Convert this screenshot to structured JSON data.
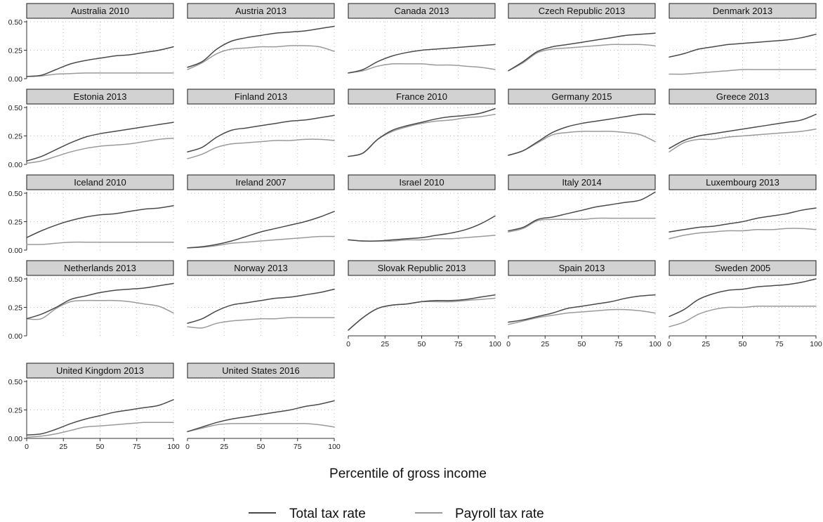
{
  "chart_data": {
    "type": "line",
    "xlabel": "Percentile of gross income",
    "xlim": [
      0,
      100
    ],
    "ylim": [
      0,
      0.5
    ],
    "x_ticks": [
      "0",
      "25",
      "50",
      "75",
      "100"
    ],
    "y_ticks": [
      "0.00",
      "0.25",
      "0.50"
    ],
    "x": [
      0,
      10,
      20,
      30,
      40,
      50,
      60,
      70,
      80,
      90,
      100
    ],
    "grid": "dotted",
    "legend_position": "bottom",
    "legend": [
      {
        "name": "Total tax rate",
        "color": "#4a4a4a"
      },
      {
        "name": "Payroll tax rate",
        "color": "#9a9a9a"
      }
    ],
    "panels": [
      {
        "title": "Australia 2010",
        "total": [
          0.02,
          0.03,
          0.08,
          0.13,
          0.16,
          0.18,
          0.2,
          0.21,
          0.23,
          0.25,
          0.28
        ],
        "payroll": [
          0.02,
          0.025,
          0.04,
          0.045,
          0.05,
          0.05,
          0.05,
          0.05,
          0.05,
          0.05,
          0.05
        ]
      },
      {
        "title": "Austria 2013",
        "total": [
          0.1,
          0.15,
          0.26,
          0.33,
          0.36,
          0.38,
          0.4,
          0.41,
          0.42,
          0.44,
          0.46
        ],
        "payroll": [
          0.08,
          0.14,
          0.22,
          0.26,
          0.27,
          0.28,
          0.28,
          0.29,
          0.29,
          0.28,
          0.24
        ]
      },
      {
        "title": "Canada 2013",
        "total": [
          0.05,
          0.08,
          0.15,
          0.2,
          0.23,
          0.25,
          0.26,
          0.27,
          0.28,
          0.29,
          0.3
        ],
        "payroll": [
          0.05,
          0.07,
          0.11,
          0.13,
          0.13,
          0.13,
          0.12,
          0.12,
          0.11,
          0.1,
          0.08
        ]
      },
      {
        "title": "Czech Republic 2013",
        "total": [
          0.07,
          0.15,
          0.24,
          0.28,
          0.3,
          0.32,
          0.34,
          0.36,
          0.38,
          0.39,
          0.4
        ],
        "payroll": [
          0.07,
          0.14,
          0.23,
          0.26,
          0.27,
          0.28,
          0.29,
          0.3,
          0.3,
          0.3,
          0.29
        ]
      },
      {
        "title": "Denmark 2013",
        "total": [
          0.19,
          0.22,
          0.26,
          0.28,
          0.3,
          0.31,
          0.32,
          0.33,
          0.34,
          0.36,
          0.39
        ],
        "payroll": [
          0.04,
          0.04,
          0.05,
          0.06,
          0.07,
          0.08,
          0.08,
          0.08,
          0.08,
          0.08,
          0.08
        ]
      },
      {
        "title": "Estonia 2013",
        "total": [
          0.03,
          0.07,
          0.13,
          0.19,
          0.24,
          0.27,
          0.29,
          0.31,
          0.33,
          0.35,
          0.37
        ],
        "payroll": [
          0.01,
          0.03,
          0.07,
          0.11,
          0.14,
          0.16,
          0.17,
          0.18,
          0.2,
          0.22,
          0.23
        ]
      },
      {
        "title": "Finland 2013",
        "total": [
          0.11,
          0.15,
          0.24,
          0.3,
          0.32,
          0.34,
          0.36,
          0.38,
          0.39,
          0.41,
          0.43
        ],
        "payroll": [
          0.05,
          0.09,
          0.15,
          0.18,
          0.19,
          0.2,
          0.21,
          0.21,
          0.22,
          0.22,
          0.21
        ]
      },
      {
        "title": "France 2010",
        "total": [
          0.07,
          0.1,
          0.22,
          0.3,
          0.34,
          0.37,
          0.4,
          0.42,
          0.43,
          0.45,
          0.49
        ],
        "payroll": [
          0.07,
          0.1,
          0.22,
          0.29,
          0.33,
          0.36,
          0.38,
          0.39,
          0.41,
          0.42,
          0.44
        ]
      },
      {
        "title": "Germany 2015",
        "total": [
          0.08,
          0.12,
          0.2,
          0.28,
          0.33,
          0.36,
          0.38,
          0.4,
          0.42,
          0.44,
          0.44
        ],
        "payroll": [
          0.08,
          0.12,
          0.19,
          0.26,
          0.28,
          0.29,
          0.29,
          0.29,
          0.28,
          0.26,
          0.2
        ]
      },
      {
        "title": "Greece 2013",
        "total": [
          0.14,
          0.21,
          0.25,
          0.27,
          0.29,
          0.31,
          0.33,
          0.35,
          0.37,
          0.39,
          0.44
        ],
        "payroll": [
          0.11,
          0.19,
          0.22,
          0.22,
          0.24,
          0.25,
          0.26,
          0.27,
          0.28,
          0.29,
          0.31
        ]
      },
      {
        "title": "Iceland 2010",
        "total": [
          0.11,
          0.17,
          0.22,
          0.26,
          0.29,
          0.31,
          0.32,
          0.34,
          0.36,
          0.37,
          0.39
        ],
        "payroll": [
          0.05,
          0.05,
          0.06,
          0.07,
          0.07,
          0.07,
          0.07,
          0.07,
          0.07,
          0.07,
          0.07
        ]
      },
      {
        "title": "Ireland 2007",
        "total": [
          0.02,
          0.03,
          0.05,
          0.08,
          0.12,
          0.16,
          0.19,
          0.22,
          0.25,
          0.29,
          0.34
        ],
        "payroll": [
          0.02,
          0.025,
          0.04,
          0.06,
          0.07,
          0.08,
          0.09,
          0.1,
          0.11,
          0.12,
          0.12
        ]
      },
      {
        "title": "Israel 2010",
        "total": [
          0.09,
          0.08,
          0.08,
          0.09,
          0.1,
          0.11,
          0.13,
          0.15,
          0.18,
          0.23,
          0.3
        ],
        "payroll": [
          0.09,
          0.08,
          0.08,
          0.08,
          0.09,
          0.09,
          0.1,
          0.1,
          0.11,
          0.12,
          0.13
        ]
      },
      {
        "title": "Italy 2014",
        "total": [
          0.17,
          0.2,
          0.27,
          0.29,
          0.32,
          0.35,
          0.38,
          0.4,
          0.42,
          0.44,
          0.51
        ],
        "payroll": [
          0.16,
          0.19,
          0.26,
          0.27,
          0.27,
          0.27,
          0.28,
          0.28,
          0.28,
          0.28,
          0.28
        ]
      },
      {
        "title": "Luxembourg 2013",
        "total": [
          0.16,
          0.18,
          0.2,
          0.21,
          0.23,
          0.25,
          0.28,
          0.3,
          0.32,
          0.35,
          0.37
        ],
        "payroll": [
          0.1,
          0.13,
          0.15,
          0.16,
          0.17,
          0.17,
          0.18,
          0.18,
          0.19,
          0.19,
          0.18
        ]
      },
      {
        "title": "Netherlands 2013",
        "total": [
          0.15,
          0.19,
          0.25,
          0.32,
          0.35,
          0.38,
          0.4,
          0.41,
          0.42,
          0.44,
          0.46
        ],
        "payroll": [
          0.15,
          0.15,
          0.24,
          0.3,
          0.31,
          0.31,
          0.31,
          0.3,
          0.28,
          0.26,
          0.2
        ]
      },
      {
        "title": "Norway 2013",
        "total": [
          0.11,
          0.15,
          0.22,
          0.27,
          0.29,
          0.31,
          0.33,
          0.34,
          0.36,
          0.38,
          0.41
        ],
        "payroll": [
          0.08,
          0.07,
          0.11,
          0.13,
          0.14,
          0.15,
          0.15,
          0.16,
          0.16,
          0.16,
          0.16
        ]
      },
      {
        "title": "Slovak Republic 2013",
        "total": [
          0.05,
          0.16,
          0.24,
          0.27,
          0.28,
          0.3,
          0.31,
          0.31,
          0.32,
          0.34,
          0.36
        ],
        "payroll": [
          0.05,
          0.16,
          0.24,
          0.27,
          0.28,
          0.3,
          0.3,
          0.3,
          0.31,
          0.32,
          0.33
        ]
      },
      {
        "title": "Spain 2013",
        "total": [
          0.12,
          0.14,
          0.17,
          0.2,
          0.24,
          0.26,
          0.28,
          0.3,
          0.33,
          0.35,
          0.36
        ],
        "payroll": [
          0.1,
          0.13,
          0.16,
          0.18,
          0.2,
          0.21,
          0.22,
          0.23,
          0.23,
          0.22,
          0.2
        ]
      },
      {
        "title": "Sweden 2005",
        "total": [
          0.17,
          0.23,
          0.32,
          0.37,
          0.4,
          0.41,
          0.43,
          0.44,
          0.45,
          0.47,
          0.5
        ],
        "payroll": [
          0.08,
          0.12,
          0.19,
          0.23,
          0.25,
          0.25,
          0.26,
          0.26,
          0.26,
          0.26,
          0.26
        ]
      },
      {
        "title": "United Kingdom 2013",
        "total": [
          0.03,
          0.04,
          0.08,
          0.13,
          0.17,
          0.2,
          0.23,
          0.25,
          0.27,
          0.29,
          0.34
        ],
        "payroll": [
          0.01,
          0.02,
          0.04,
          0.07,
          0.1,
          0.11,
          0.12,
          0.13,
          0.14,
          0.14,
          0.14
        ]
      },
      {
        "title": "United States 2016",
        "total": [
          0.06,
          0.1,
          0.14,
          0.17,
          0.19,
          0.21,
          0.23,
          0.25,
          0.28,
          0.3,
          0.33
        ],
        "payroll": [
          0.06,
          0.09,
          0.12,
          0.13,
          0.13,
          0.13,
          0.13,
          0.13,
          0.13,
          0.12,
          0.1
        ]
      }
    ]
  }
}
